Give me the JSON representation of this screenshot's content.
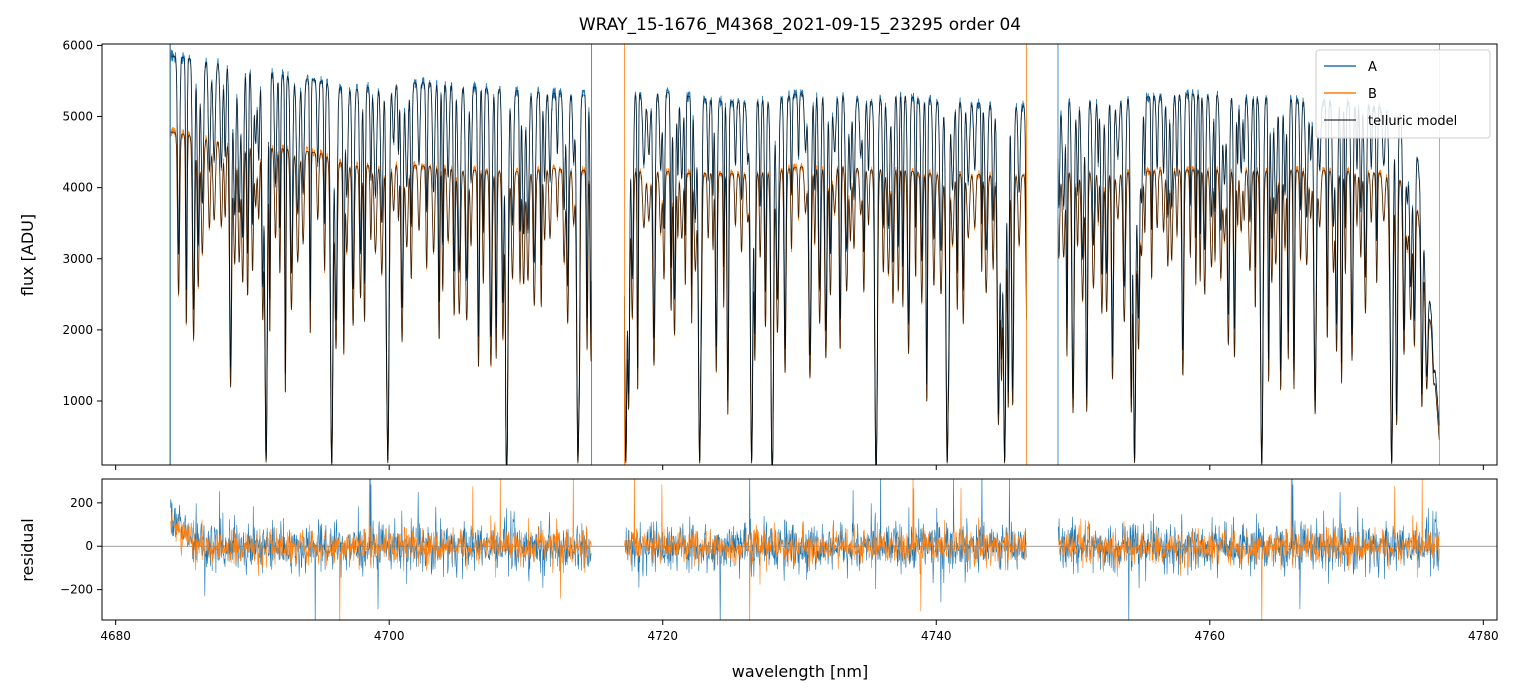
{
  "figure": {
    "title": "WRAY_15-1676_M4368_2021-09-15_23295  order 04"
  },
  "colors": {
    "A": "#1f77b4",
    "B": "#ff7f0e",
    "telluric": "#000000",
    "zero_line": "#7f7f7f"
  },
  "chart_data": [
    {
      "type": "line",
      "title": "WRAY_15-1676_M4368_2021-09-15_23295  order 04",
      "xlabel": "",
      "ylabel": "flux [ADU]",
      "xlim": [
        4679,
        4781
      ],
      "ylim": [
        100,
        6020
      ],
      "x_ticks": [
        4680,
        4700,
        4720,
        4740,
        4760,
        4780
      ],
      "x_tick_labels_shown": false,
      "y_ticks": [
        1000,
        2000,
        3000,
        4000,
        5000,
        6000
      ],
      "y_tick_labels": [
        "1000",
        "2000",
        "3000",
        "4000",
        "5000",
        "6000"
      ],
      "legend": {
        "placement": "top-right",
        "entries": [
          "A",
          "B",
          "telluric model"
        ]
      },
      "data_gaps_nm": [
        [
          4714.8,
          4717.2
        ],
        [
          4746.6,
          4748.9
        ]
      ],
      "series": [
        {
          "name": "A",
          "x_range": [
            4684.0,
            4776.8
          ],
          "continuum": [
            [
              4684.2,
              5850
            ],
            [
              4688,
              5750
            ],
            [
              4691,
              5620
            ],
            [
              4693,
              5560
            ],
            [
              4695,
              5500
            ],
            [
              4697,
              5370
            ],
            [
              4700,
              5460
            ],
            [
              4703,
              5480
            ],
            [
              4706,
              5420
            ],
            [
              4709,
              5370
            ],
            [
              4712,
              5330
            ],
            [
              4714.5,
              5300
            ],
            [
              4717.5,
              5300
            ],
            [
              4720,
              5350
            ],
            [
              4722,
              5280
            ],
            [
              4724,
              5220
            ],
            [
              4726,
              5200
            ],
            [
              4728,
              5250
            ],
            [
              4731,
              5350
            ],
            [
              4733,
              5340
            ],
            [
              4735,
              5200
            ],
            [
              4737,
              5330
            ],
            [
              4739,
              5240
            ],
            [
              4742,
              5200
            ],
            [
              4744,
              5170
            ],
            [
              4746.5,
              5150
            ],
            [
              4749,
              5200
            ],
            [
              4752,
              5250
            ],
            [
              4755,
              5270
            ],
            [
              4758,
              5320
            ],
            [
              4761,
              5300
            ],
            [
              4764,
              5260
            ],
            [
              4767,
              5230
            ],
            [
              4770,
              5200
            ],
            [
              4773,
              5120
            ],
            [
              4775,
              4850
            ],
            [
              4776.2,
              2200
            ],
            [
              4776.8,
              600
            ]
          ]
        },
        {
          "name": "B",
          "x_range": [
            4684.0,
            4776.8
          ],
          "continuum": [
            [
              4684.2,
              4780
            ],
            [
              4688,
              4640
            ],
            [
              4691,
              4560
            ],
            [
              4693,
              4540
            ],
            [
              4695,
              4480
            ],
            [
              4697,
              4300
            ],
            [
              4700,
              4330
            ],
            [
              4703,
              4300
            ],
            [
              4706,
              4250
            ],
            [
              4709,
              4220
            ],
            [
              4712,
              4270
            ],
            [
              4714.5,
              4240
            ],
            [
              4717.5,
              4230
            ],
            [
              4720,
              4230
            ],
            [
              4722,
              4200
            ],
            [
              4724,
              4200
            ],
            [
              4726,
              4190
            ],
            [
              4728,
              4230
            ],
            [
              4731,
              4320
            ],
            [
              4733,
              4330
            ],
            [
              4735,
              4250
            ],
            [
              4737,
              4280
            ],
            [
              4739,
              4200
            ],
            [
              4742,
              4190
            ],
            [
              4744,
              4180
            ],
            [
              4746.5,
              4180
            ],
            [
              4749,
              4200
            ],
            [
              4752,
              4240
            ],
            [
              4755,
              4230
            ],
            [
              4758,
              4250
            ],
            [
              4761,
              4250
            ],
            [
              4764,
              4240
            ],
            [
              4767,
              4250
            ],
            [
              4770,
              4230
            ],
            [
              4773,
              4200
            ],
            [
              4775,
              4000
            ],
            [
              4776.2,
              2000
            ],
            [
              4776.8,
              400
            ]
          ]
        },
        {
          "name": "telluric model",
          "x_range": [
            4684.0,
            4776.8
          ],
          "deep_lines_nm": [
            4691.0,
            4695.8,
            4699.9,
            4708.6,
            4713.8,
            4717.3,
            4722.7,
            4726.5,
            4728.0,
            4735.6,
            4740.8,
            4745.0,
            4754.5,
            4763.8,
            4773.3
          ],
          "deep_line_min_flux": 150
        }
      ]
    },
    {
      "type": "line",
      "title": "",
      "xlabel": "wavelength [nm]",
      "ylabel": "residual",
      "xlim": [
        4679,
        4781
      ],
      "ylim": [
        -340,
        310
      ],
      "x_ticks": [
        4680,
        4700,
        4720,
        4740,
        4760,
        4780
      ],
      "x_tick_labels": [
        "4680",
        "4700",
        "4720",
        "4740",
        "4760",
        "4780"
      ],
      "y_ticks": [
        -200,
        0,
        200
      ],
      "y_tick_labels": [
        "−200",
        "0",
        "200"
      ],
      "zero_line": 0,
      "series": [
        {
          "name": "A",
          "x_range": [
            4684.0,
            4776.8
          ],
          "typical_amplitude": 110,
          "start_offset": 130
        },
        {
          "name": "B",
          "x_range": [
            4684.0,
            4776.8
          ],
          "typical_amplitude": 80,
          "start_offset": 110
        }
      ]
    }
  ]
}
